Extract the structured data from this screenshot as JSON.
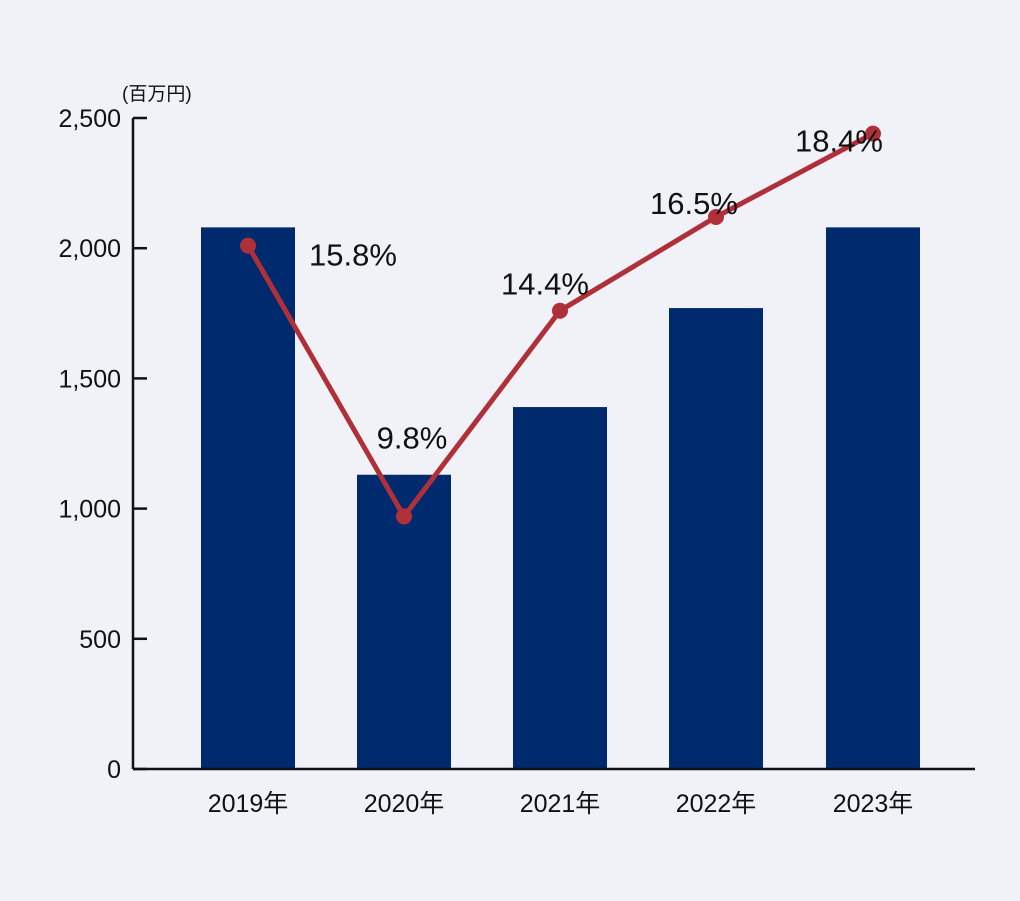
{
  "chart_data": {
    "type": "bar",
    "unit_label": "(百万円)",
    "categories": [
      "2019年",
      "2020年",
      "2021年",
      "2022年",
      "2023年"
    ],
    "ylim": [
      0,
      2500
    ],
    "yticks": [
      0,
      500,
      1000,
      1500,
      2000,
      2500
    ],
    "ytick_labels": [
      "0",
      "500",
      "1,000",
      "1,500",
      "2,000",
      "2,500"
    ],
    "grid": false,
    "bars": {
      "values": [
        2080,
        1130,
        1390,
        1770,
        2080
      ],
      "color": "#002a6e"
    },
    "line": {
      "values": [
        2010,
        970,
        1760,
        2120,
        2440
      ],
      "labels": [
        "15.8%",
        "9.8%",
        "14.4%",
        "16.5%",
        "18.4%"
      ],
      "color": "#b0303a"
    }
  }
}
